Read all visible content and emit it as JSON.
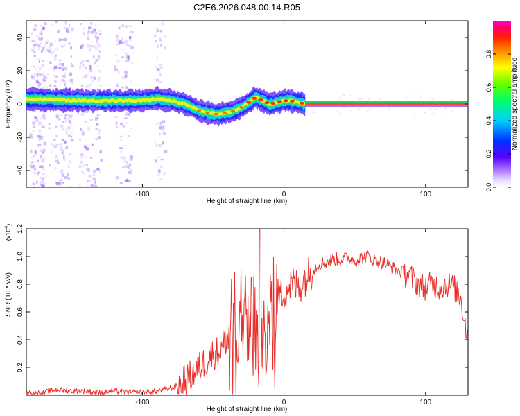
{
  "title": "C2E6.2026.048.00.14.R05",
  "chart_data": [
    {
      "type": "heatmap",
      "name": "spectrogram",
      "xlabel": "Height of straight line (km)",
      "ylabel": "Frequency (Hz)",
      "xlim": [
        -182,
        130
      ],
      "ylim": [
        -50,
        50
      ],
      "xticks": [
        -100,
        0,
        100
      ],
      "yticks": [
        -40,
        -20,
        0,
        20,
        40
      ],
      "ridge": {
        "description": "dominant frequency vs height",
        "x": [
          -180,
          -160,
          -140,
          -120,
          -100,
          -90,
          -80,
          -75,
          -70,
          -65,
          -60,
          -55,
          -50,
          -45,
          -40,
          -35,
          -30,
          -25,
          -20,
          -15,
          -10,
          -5,
          0,
          5,
          10,
          15,
          130
        ],
        "y": [
          3,
          2.5,
          2,
          2,
          2,
          3,
          2,
          1,
          0,
          -2,
          -4,
          -5,
          -6,
          -6,
          -5,
          -4,
          -2,
          1,
          4,
          2,
          0,
          1,
          2,
          2,
          1,
          0,
          0
        ]
      },
      "colorbar": {
        "label": "Normalized spectral amplitude",
        "range": [
          0,
          1
        ],
        "ticks": [
          "0.0",
          "0.2",
          "0.4",
          "0.6",
          "0.8"
        ]
      }
    },
    {
      "type": "line",
      "name": "snr",
      "xlabel": "Height of straight line (km)",
      "ylabel": "SNR (10 * v/v)",
      "yscale_label": "(x10",
      "yscale_exp": "4",
      "xlim": [
        -182,
        130
      ],
      "ylim": [
        0,
        1.2
      ],
      "xticks": [
        -100,
        0,
        100
      ],
      "yticks": [
        "0.2",
        "0.4",
        "0.6",
        "0.8",
        "1.0",
        "1.2"
      ],
      "color": "#e8302a",
      "series": {
        "x": [
          -182,
          -170,
          -160,
          -150,
          -140,
          -130,
          -120,
          -110,
          -100,
          -90,
          -80,
          -75,
          -70,
          -65,
          -60,
          -55,
          -50,
          -45,
          -40,
          -35,
          -30,
          -25,
          -20,
          -18,
          -15,
          -12,
          -10,
          -5,
          0,
          5,
          10,
          15,
          20,
          25,
          30,
          35,
          40,
          45,
          50,
          55,
          60,
          65,
          70,
          75,
          80,
          85,
          90,
          95,
          100,
          105,
          110,
          115,
          120,
          125,
          130
        ],
        "y": [
          0.01,
          0.02,
          0.04,
          0.03,
          0.03,
          0.02,
          0.03,
          0.02,
          0.02,
          0.03,
          0.05,
          0.07,
          0.1,
          0.15,
          0.2,
          0.25,
          0.3,
          0.32,
          0.42,
          0.55,
          0.6,
          0.55,
          0.62,
          0.4,
          0.5,
          0.6,
          0.62,
          0.7,
          0.75,
          0.8,
          0.78,
          0.85,
          0.9,
          0.95,
          0.96,
          0.98,
          0.98,
          0.99,
          0.97,
          0.99,
          1.0,
          0.97,
          0.96,
          0.93,
          0.9,
          0.88,
          0.85,
          0.8,
          0.78,
          0.8,
          0.78,
          0.8,
          0.78,
          0.7,
          0.4
        ]
      }
    }
  ]
}
